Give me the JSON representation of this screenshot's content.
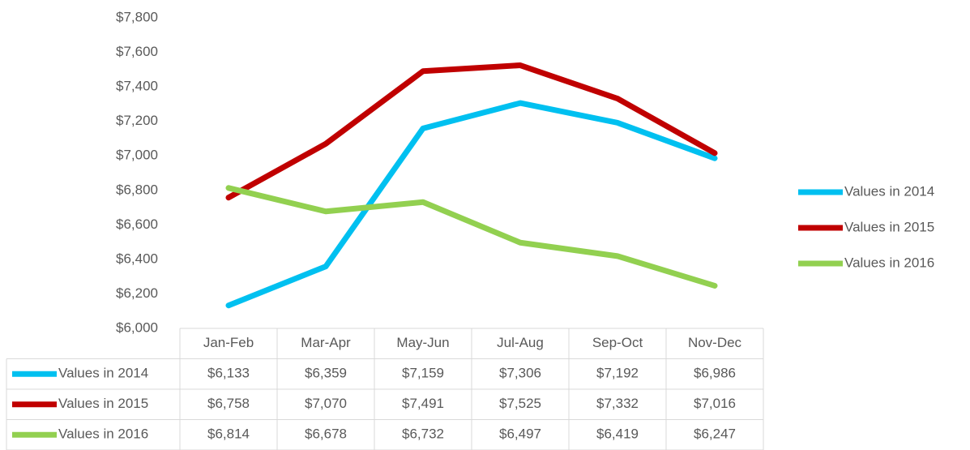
{
  "chart_data": {
    "type": "line",
    "categories": [
      "Jan-Feb",
      "Mar-Apr",
      "May-Jun",
      "Jul-Aug",
      "Sep-Oct",
      "Nov-Dec"
    ],
    "series": [
      {
        "name": "Values in 2014",
        "color": "#00c0f0",
        "values": [
          6133,
          6359,
          7159,
          7306,
          7192,
          6986
        ],
        "value_labels": [
          "$6,133",
          "$6,359",
          "$7,159",
          "$7,306",
          "$7,192",
          "$6,986"
        ]
      },
      {
        "name": "Values in 2015",
        "color": "#c00000",
        "values": [
          6758,
          7070,
          7491,
          7525,
          7332,
          7016
        ],
        "value_labels": [
          "$6,758",
          "$7,070",
          "$7,491",
          "$7,525",
          "$7,332",
          "$7,016"
        ]
      },
      {
        "name": "Values in 2016",
        "color": "#92d050",
        "values": [
          6814,
          6678,
          6732,
          6497,
          6419,
          6247
        ],
        "value_labels": [
          "$6,814",
          "$6,678",
          "$6,732",
          "$6,497",
          "$6,419",
          "$6,247"
        ]
      }
    ],
    "ylim": [
      6000,
      7800
    ],
    "yticks": [
      {
        "value": 6000,
        "label": "$6,000"
      },
      {
        "value": 6200,
        "label": "$6,200"
      },
      {
        "value": 6400,
        "label": "$6,400"
      },
      {
        "value": 6600,
        "label": "$6,600"
      },
      {
        "value": 6800,
        "label": "$6,800"
      },
      {
        "value": 7000,
        "label": "$7,000"
      },
      {
        "value": 7200,
        "label": "$7,200"
      },
      {
        "value": 7400,
        "label": "$7,400"
      },
      {
        "value": 7600,
        "label": "$7,600"
      },
      {
        "value": 7800,
        "label": "$7,800"
      }
    ],
    "grid": false,
    "legend": "right",
    "data_table": true
  }
}
